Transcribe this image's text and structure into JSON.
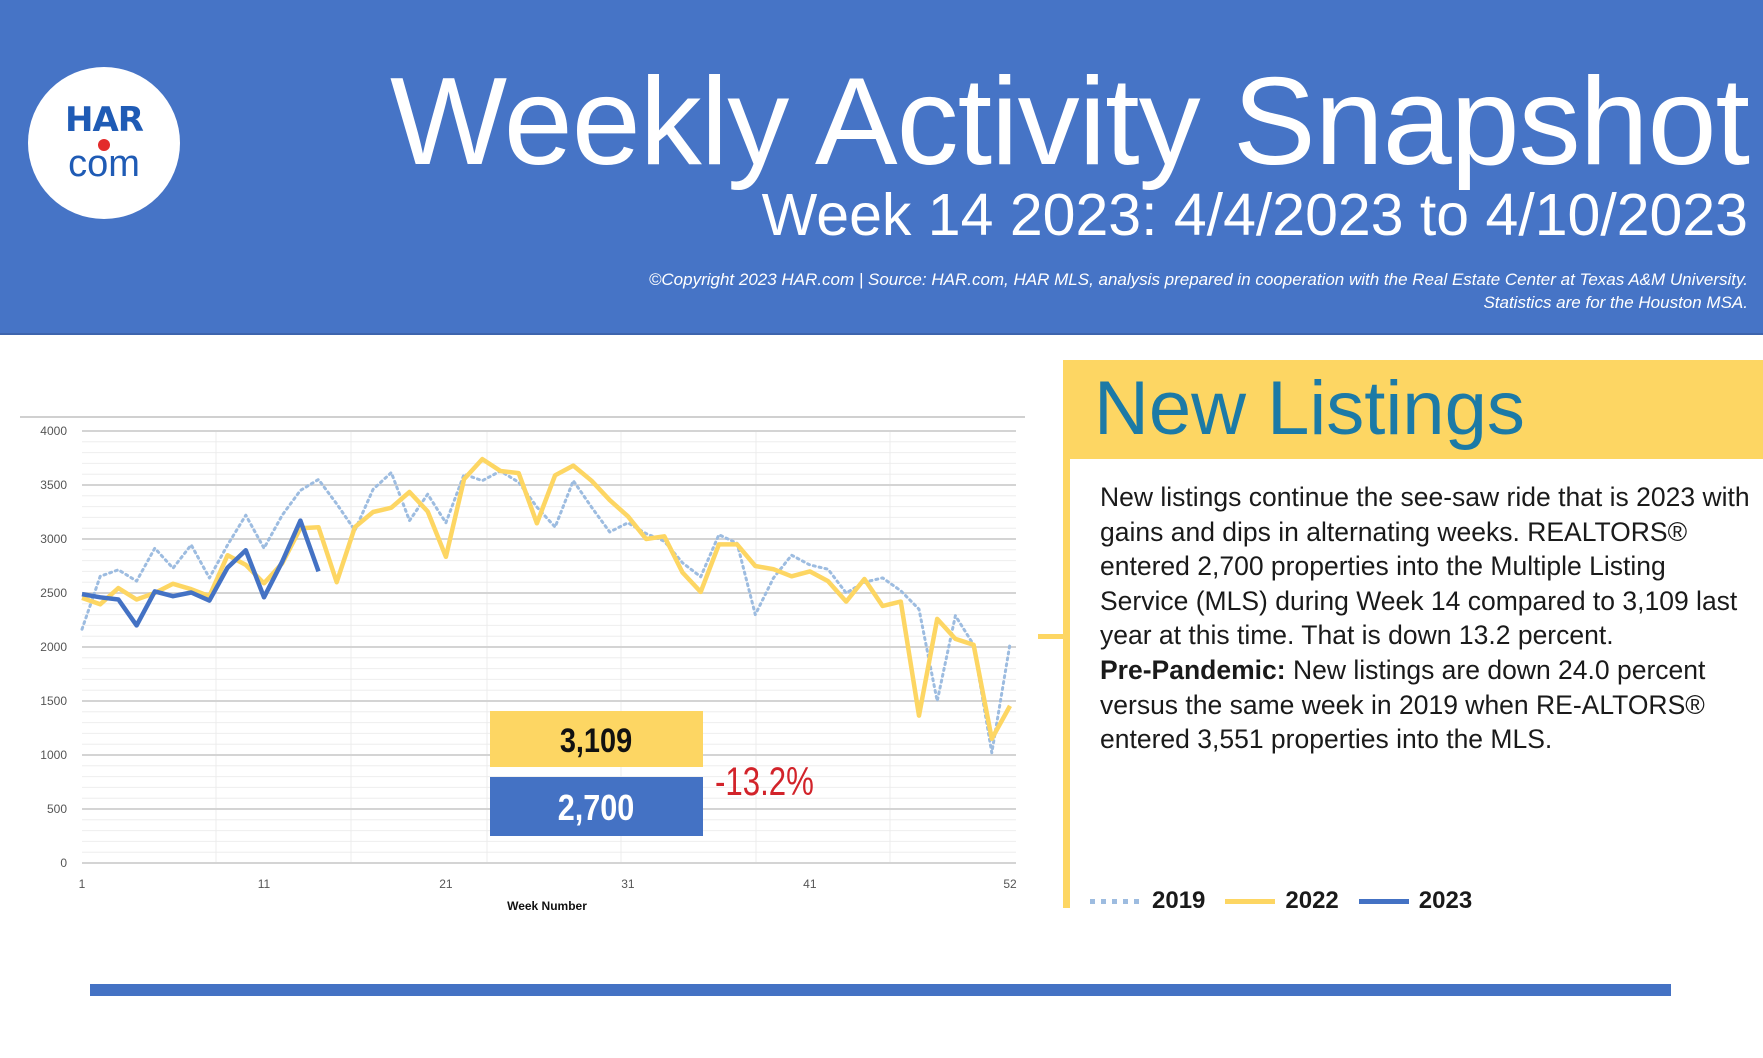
{
  "header": {
    "logo_top": "HAR",
    "logo_bottom": "com",
    "title": "Weekly Activity Snapshot",
    "subtitle": "Week 14 2023: 4/4/2023 to 4/10/2023",
    "credit_line1": "©Copyright 2023 HAR.com  |  Source: HAR.com, HAR MLS, analysis prepared in cooperation with the Real Estate Center at Texas A&M University.",
    "credit_line2": "Statistics are for the Houston MSA.",
    "background_color": "#4674C6"
  },
  "panel": {
    "title": "New Listings",
    "paragraph1": "New listings continue the see-saw ride that is 2023 with gains and dips in alternating weeks. REALTORS® entered 2,700 properties into the Multiple Listing Service (MLS) during Week 14 compared to 3,109 last year at this time. That is down 13.2 percent.",
    "prepandemic_label": "Pre-Pandemic:",
    "paragraph2": " New listings are down 24.0 percent versus the same week in 2019 when RE-ALTORS® entered 3,551 properties into the MLS.",
    "accent_color": "#FDD663",
    "title_color": "#1C7AA6"
  },
  "legend": [
    {
      "label": "2019",
      "style": "dotted",
      "color": "#9DBCE0"
    },
    {
      "label": "2022",
      "style": "solid",
      "color": "#FDD663"
    },
    {
      "label": "2023",
      "style": "solid",
      "color": "#4472C4"
    }
  ],
  "callout": {
    "last_year_value": "3,109",
    "this_year_value": "2,700",
    "change": "-13.2%",
    "change_color": "#D2232A"
  },
  "chart_data": {
    "type": "line",
    "title": "",
    "xlabel": "Week Number",
    "ylabel": "",
    "xlim": [
      1,
      52
    ],
    "ylim": [
      0,
      4000
    ],
    "x_ticks": [
      1,
      11,
      21,
      31,
      41,
      52
    ],
    "y_ticks": [
      0,
      500,
      1000,
      1500,
      2000,
      2500,
      3000,
      3500,
      4000
    ],
    "grid": true,
    "legend_position": "bottom-right",
    "series": [
      {
        "name": "2019",
        "style": "dotted",
        "color": "#9DBCE0",
        "x": [
          1,
          2,
          3,
          4,
          5,
          6,
          7,
          8,
          9,
          10,
          11,
          12,
          13,
          14,
          15,
          16,
          17,
          18,
          19,
          20,
          21,
          22,
          23,
          24,
          25,
          26,
          27,
          28,
          29,
          30,
          31,
          32,
          33,
          34,
          35,
          36,
          37,
          38,
          39,
          40,
          41,
          42,
          43,
          44,
          45,
          46,
          47,
          48,
          49,
          50,
          51,
          52
        ],
        "values": [
          2165,
          2655,
          2715,
          2610,
          2915,
          2730,
          2945,
          2640,
          2945,
          3220,
          2915,
          3220,
          3450,
          3551,
          3325,
          3080,
          3460,
          3615,
          3170,
          3415,
          3150,
          3600,
          3540,
          3630,
          3525,
          3295,
          3110,
          3540,
          3295,
          3065,
          3150,
          3050,
          2980,
          2780,
          2650,
          3040,
          2960,
          2300,
          2640,
          2850,
          2760,
          2720,
          2500,
          2600,
          2640,
          2520,
          2350,
          1500,
          2290,
          2020,
          1020,
          2030
        ]
      },
      {
        "name": "2022",
        "style": "solid",
        "color": "#FDD663",
        "x": [
          1,
          2,
          3,
          4,
          5,
          6,
          7,
          8,
          9,
          10,
          11,
          12,
          13,
          14,
          15,
          16,
          17,
          18,
          19,
          20,
          21,
          22,
          23,
          24,
          25,
          26,
          27,
          28,
          29,
          30,
          31,
          32,
          33,
          34,
          35,
          36,
          37,
          38,
          39,
          40,
          41,
          42,
          43,
          44,
          45,
          46,
          47,
          48,
          49,
          50,
          51,
          52
        ],
        "values": [
          2455,
          2395,
          2545,
          2440,
          2500,
          2585,
          2535,
          2470,
          2850,
          2760,
          2590,
          2775,
          3100,
          3109,
          2600,
          3110,
          3250,
          3290,
          3435,
          3255,
          2835,
          3555,
          3740,
          3630,
          3610,
          3145,
          3590,
          3680,
          3540,
          3360,
          3210,
          3000,
          3025,
          2690,
          2510,
          2950,
          2950,
          2750,
          2720,
          2655,
          2700,
          2610,
          2420,
          2630,
          2380,
          2420,
          1365,
          2260,
          2075,
          2020,
          1150,
          1455
        ]
      },
      {
        "name": "2023",
        "style": "solid",
        "color": "#4472C4",
        "x": [
          1,
          2,
          3,
          4,
          5,
          6,
          7,
          8,
          9,
          10,
          11,
          12,
          13,
          14
        ],
        "values": [
          2490,
          2460,
          2440,
          2200,
          2515,
          2470,
          2505,
          2430,
          2735,
          2895,
          2460,
          2790,
          3170,
          2700
        ]
      }
    ]
  }
}
